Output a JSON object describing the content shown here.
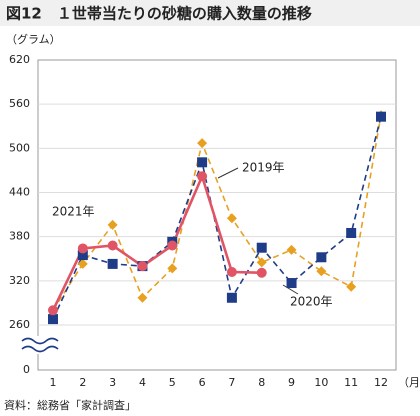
{
  "chart_data": {
    "type": "line",
    "title": "図12　１世帯当たりの砂糖の購入数量の推移",
    "y_unit": "（グラム）",
    "x_unit": "（月）",
    "source": "資料：総務省「家計調査」",
    "categories": [
      "1",
      "2",
      "3",
      "4",
      "5",
      "6",
      "7",
      "8",
      "9",
      "10",
      "11",
      "12"
    ],
    "ylim": [
      260,
      620
    ],
    "yticks": [
      0,
      260,
      320,
      380,
      440,
      500,
      560,
      620
    ],
    "axis_break": true,
    "grid": true,
    "series": [
      {
        "name": "2019年",
        "color": "#e8a020",
        "marker": "diamond",
        "dash": true,
        "values": [
          280,
          343,
          396,
          297,
          337,
          507,
          405,
          345,
          362,
          333,
          312,
          545
        ]
      },
      {
        "name": "2020年",
        "color": "#1f3c88",
        "marker": "square",
        "dash": true,
        "values": [
          268,
          355,
          343,
          340,
          373,
          481,
          297,
          365,
          317,
          352,
          385,
          543
        ]
      },
      {
        "name": "2021年",
        "color": "#e05565",
        "marker": "circle",
        "dash": false,
        "values": [
          280,
          364,
          368,
          340,
          368,
          462,
          332,
          331,
          null,
          null,
          null,
          null
        ]
      }
    ]
  }
}
